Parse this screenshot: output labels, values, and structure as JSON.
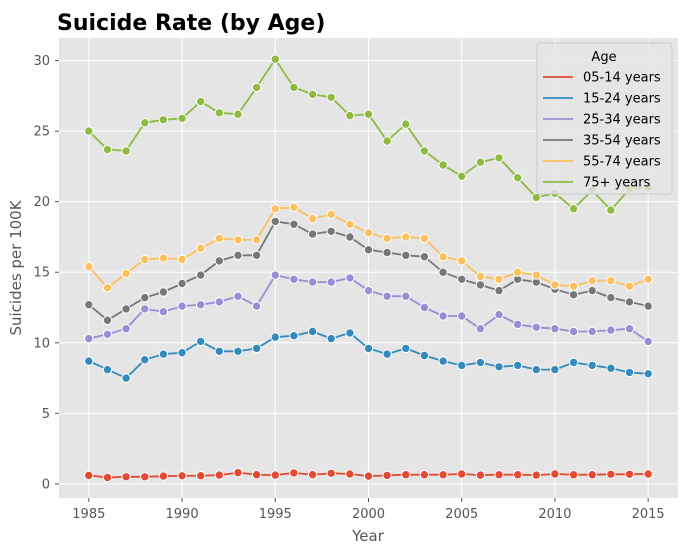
{
  "chart_data": {
    "type": "line",
    "title": "Suicide Rate (by Age)",
    "xlabel": "Year",
    "ylabel": "Suicides per 100K",
    "xlim": [
      1983.4,
      2016.6
    ],
    "ylim": [
      -1.0,
      31.6
    ],
    "xticks": [
      1985,
      1990,
      1995,
      2000,
      2005,
      2010,
      2015
    ],
    "yticks": [
      0,
      5,
      10,
      15,
      20,
      25,
      30
    ],
    "grid": true,
    "legend": {
      "title": "Age",
      "position": "top-right"
    },
    "x": [
      1985,
      1986,
      1987,
      1988,
      1989,
      1990,
      1991,
      1992,
      1993,
      1994,
      1995,
      1996,
      1997,
      1998,
      1999,
      2000,
      2001,
      2002,
      2003,
      2004,
      2005,
      2006,
      2007,
      2008,
      2009,
      2010,
      2011,
      2012,
      2013,
      2014,
      2015
    ],
    "series": [
      {
        "name": "05-14 years",
        "color": "#E24A33",
        "values": [
          0.6,
          0.45,
          0.5,
          0.5,
          0.55,
          0.57,
          0.58,
          0.62,
          0.8,
          0.65,
          0.62,
          0.78,
          0.65,
          0.75,
          0.7,
          0.55,
          0.6,
          0.65,
          0.65,
          0.65,
          0.7,
          0.62,
          0.65,
          0.65,
          0.62,
          0.7,
          0.65,
          0.65,
          0.68,
          0.68,
          0.7
        ]
      },
      {
        "name": "15-24 years",
        "color": "#348ABD",
        "values": [
          8.7,
          8.1,
          7.5,
          8.8,
          9.2,
          9.3,
          10.1,
          9.4,
          9.4,
          9.6,
          10.4,
          10.5,
          10.8,
          10.3,
          10.7,
          9.6,
          9.2,
          9.6,
          9.1,
          8.7,
          8.4,
          8.6,
          8.3,
          8.4,
          8.1,
          8.1,
          8.6,
          8.4,
          8.2,
          7.9,
          7.8
        ]
      },
      {
        "name": "25-34 years",
        "color": "#988ED5",
        "values": [
          10.3,
          10.6,
          11.0,
          12.4,
          12.2,
          12.6,
          12.7,
          12.9,
          13.3,
          12.6,
          14.8,
          14.5,
          14.3,
          14.3,
          14.6,
          13.7,
          13.3,
          13.3,
          12.5,
          11.9,
          11.9,
          11.0,
          12.0,
          11.3,
          11.1,
          11.0,
          10.8,
          10.8,
          10.9,
          11.0,
          10.1
        ]
      },
      {
        "name": "35-54 years",
        "color": "#777777",
        "values": [
          12.7,
          11.6,
          12.4,
          13.2,
          13.6,
          14.2,
          14.8,
          15.8,
          16.2,
          16.2,
          18.6,
          18.4,
          17.7,
          17.9,
          17.5,
          16.6,
          16.4,
          16.2,
          16.1,
          15.0,
          14.5,
          14.1,
          13.7,
          14.5,
          14.3,
          13.8,
          13.4,
          13.7,
          13.2,
          12.9,
          12.6
        ]
      },
      {
        "name": "55-74 years",
        "color": "#FBC15E",
        "values": [
          15.4,
          13.9,
          14.9,
          15.9,
          16.0,
          15.9,
          16.7,
          17.4,
          17.3,
          17.3,
          19.5,
          19.6,
          18.8,
          19.1,
          18.4,
          17.8,
          17.4,
          17.5,
          17.4,
          16.1,
          15.8,
          14.7,
          14.5,
          15.0,
          14.8,
          14.1,
          14.0,
          14.4,
          14.4,
          14.0,
          14.5
        ]
      },
      {
        "name": "75+ years",
        "color": "#8EBA42",
        "values": [
          25.0,
          23.7,
          23.6,
          25.6,
          25.8,
          25.9,
          27.1,
          26.3,
          26.2,
          28.1,
          30.1,
          28.1,
          27.6,
          27.4,
          26.1,
          26.2,
          24.3,
          25.5,
          23.6,
          22.6,
          21.8,
          22.8,
          23.1,
          21.7,
          20.3,
          20.6,
          19.5,
          20.8,
          19.4,
          20.9,
          21.0
        ]
      }
    ]
  }
}
